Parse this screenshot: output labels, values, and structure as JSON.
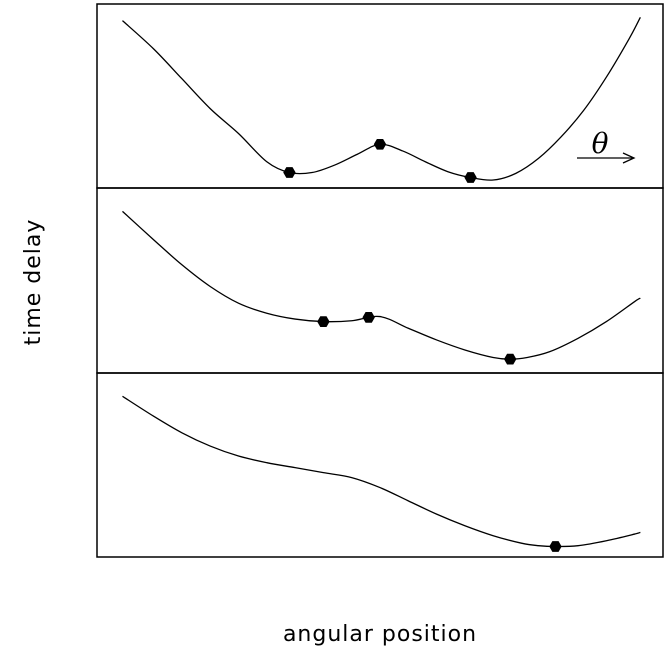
{
  "chart_data": {
    "type": "line",
    "xlabel": "angular position",
    "ylabel": "time delay",
    "annotation": {
      "symbol": "θ",
      "meaning": "arrow pointing toward increasing angle"
    },
    "xlim": [
      0,
      10
    ],
    "ylim": [
      0,
      10
    ],
    "grid": false,
    "panels": [
      {
        "name": "",
        "curve": {
          "x": [
            0.45,
            1.0,
            1.5,
            2.0,
            2.5,
            3.0,
            3.4,
            3.8,
            4.2,
            4.6,
            5.0,
            5.4,
            5.8,
            6.2,
            6.6,
            7.0,
            7.4,
            7.8,
            8.2,
            8.6,
            9.0,
            9.4,
            9.6
          ],
          "y": [
            9.6,
            7.9,
            6.1,
            4.3,
            2.8,
            1.1,
            0.45,
            0.45,
            0.9,
            1.55,
            2.15,
            1.75,
            1.1,
            0.5,
            0.15,
            0.0,
            0.4,
            1.3,
            2.6,
            4.2,
            6.2,
            8.5,
            9.8
          ]
        },
        "images": [
          {
            "x": 3.4,
            "y": 0.45
          },
          {
            "x": 5.0,
            "y": 2.15
          },
          {
            "x": 6.6,
            "y": 0.15
          }
        ]
      },
      {
        "name": "",
        "curve": {
          "x": [
            0.45,
            1.0,
            1.5,
            2.0,
            2.5,
            3.0,
            3.5,
            4.0,
            4.5,
            5.0,
            5.5,
            6.0,
            6.5,
            7.0,
            7.3,
            7.6,
            8.0,
            8.5,
            9.0,
            9.5,
            9.6
          ],
          "y": [
            9.2,
            7.5,
            6.0,
            4.7,
            3.7,
            3.1,
            2.75,
            2.6,
            2.65,
            2.9,
            2.2,
            1.5,
            0.9,
            0.45,
            0.35,
            0.45,
            0.8,
            1.6,
            2.6,
            3.8,
            4.0
          ]
        },
        "images": [
          {
            "x": 4.0,
            "y": 2.6
          },
          {
            "x": 4.8,
            "y": 2.85
          },
          {
            "x": 7.3,
            "y": 0.35
          }
        ]
      },
      {
        "name": "",
        "curve": {
          "x": [
            0.45,
            1.0,
            1.5,
            2.0,
            2.5,
            3.0,
            3.5,
            4.0,
            4.5,
            5.0,
            5.5,
            6.0,
            6.5,
            7.0,
            7.5,
            7.8,
            8.1,
            8.5,
            9.0,
            9.5,
            9.6
          ],
          "y": [
            9.2,
            8.0,
            7.0,
            6.2,
            5.6,
            5.2,
            4.9,
            4.6,
            4.3,
            3.7,
            2.9,
            2.1,
            1.4,
            0.8,
            0.35,
            0.2,
            0.15,
            0.2,
            0.5,
            0.9,
            1.0
          ]
        },
        "images": [
          {
            "x": 8.1,
            "y": 0.15
          }
        ]
      }
    ]
  }
}
